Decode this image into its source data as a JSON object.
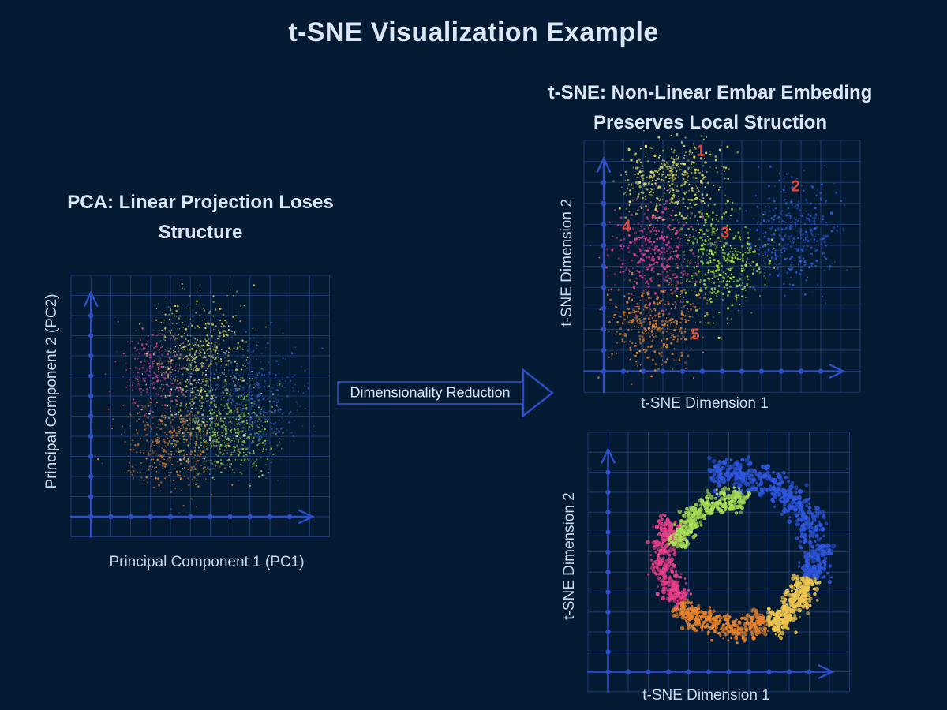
{
  "headings": {
    "main_title": "t-SNE Visualization Example",
    "pca_title_line1": "PCA: Linear Projection Loses",
    "pca_title_line2": "Structure",
    "tsne_title_line1": "t-SNE: Non-Linear Embar Embeding",
    "tsne_title_line2": "Preserves Local Struction"
  },
  "arrow": {
    "label": "Dimensionality Reduction"
  },
  "colors": {
    "background": "#041b33",
    "title_text": "#dce7f6",
    "axis_label_text": "#c9d7ea",
    "grid_line": "#1d3a74",
    "axis_line": "#2c4ec6",
    "cluster_number": "#e84338"
  },
  "chart_data": [
    {
      "id": "pca",
      "type": "scatter",
      "title": "PCA: Linear Projection Loses Structure",
      "xlabel": "Principal Component 1 (PC1)",
      "ylabel": "Principal Component 2 (PC2)",
      "grid": true,
      "tick_labels": "none",
      "description": "All classes projected into one overlapping mixed cloud",
      "groups": [
        {
          "name": "class-1-yellow",
          "color": "#ddd45c",
          "cx": 0.495,
          "cy": 0.319,
          "sx": 0.168,
          "sy": 0.187,
          "n": 600
        },
        {
          "name": "class-3-green",
          "color": "#9cd345",
          "cx": 0.596,
          "cy": 0.605,
          "sx": 0.168,
          "sy": 0.145,
          "n": 520
        },
        {
          "name": "class-5-orange",
          "color": "#dd7f32",
          "cx": 0.404,
          "cy": 0.651,
          "sx": 0.168,
          "sy": 0.151,
          "n": 480
        },
        {
          "name": "class-4-pink",
          "color": "#d84090",
          "cx": 0.324,
          "cy": 0.364,
          "sx": 0.116,
          "sy": 0.12,
          "n": 260
        },
        {
          "name": "class-2-blue",
          "color": "#2f57b8",
          "cx": 0.709,
          "cy": 0.47,
          "sx": 0.153,
          "sy": 0.187,
          "n": 420
        },
        {
          "name": "highlights-white",
          "color": "#dfe8f2",
          "cx": 0.52,
          "cy": 0.485,
          "sx": 0.22,
          "sy": 0.22,
          "n": 90
        }
      ]
    },
    {
      "id": "tsne-clusters",
      "type": "scatter",
      "title": "t-SNE: Non-Linear Embar Embeding Preserves Local Struction",
      "xlabel": "t-SNE Dimension 1",
      "ylabel": "t-SNE Dimension 2",
      "grid": true,
      "tick_labels": "none",
      "description": "Five well-separated clusters numbered 1-5",
      "clusters": [
        {
          "label": "1",
          "color": "#e5e163",
          "cx": 0.323,
          "cy": 0.154,
          "rx": 0.157,
          "ry": 0.141,
          "n": 420,
          "label_x": 0.423,
          "label_y": 0.044
        },
        {
          "label": "2",
          "color": "#2b5bd7",
          "cx": 0.763,
          "cy": 0.367,
          "rx": 0.129,
          "ry": 0.182,
          "n": 380,
          "label_x": 0.766,
          "label_y": 0.185
        },
        {
          "label": "3",
          "color": "#a8e23e",
          "cx": 0.494,
          "cy": 0.486,
          "rx": 0.134,
          "ry": 0.179,
          "n": 430,
          "label_x": 0.511,
          "label_y": 0.37
        },
        {
          "label": "4",
          "color": "#e03d92",
          "cx": 0.251,
          "cy": 0.445,
          "rx": 0.134,
          "ry": 0.163,
          "n": 430,
          "label_x": 0.154,
          "label_y": 0.345
        },
        {
          "label": "5",
          "color": "#e5832e",
          "cx": 0.266,
          "cy": 0.737,
          "rx": 0.143,
          "ry": 0.141,
          "n": 400,
          "label_x": 0.403,
          "label_y": 0.774
        }
      ]
    },
    {
      "id": "tsne-swirl",
      "type": "scatter",
      "title": "",
      "xlabel": "t-SNE Dimension 1",
      "ylabel": "t-SNE Dimension 2",
      "grid": true,
      "tick_labels": "none",
      "description": "Open ring / swirl manifold with color varying along the circumference",
      "center": {
        "x": 0.551,
        "y": 0.476
      },
      "segments": [
        {
          "name": "blue",
          "color": "#2d55de",
          "a0": -15,
          "a1": 105,
          "r": 0.32,
          "spread": 0.05,
          "n": 520,
          "size": [
            1.4,
            3.2
          ]
        },
        {
          "name": "yellow",
          "color": "#edc44e",
          "a0": -62,
          "a1": -15,
          "r": 0.3,
          "spread": 0.042,
          "n": 320,
          "size": [
            1.3,
            3.0
          ]
        },
        {
          "name": "orange",
          "color": "#e8832c",
          "a0": -138,
          "a1": -62,
          "r": 0.272,
          "spread": 0.042,
          "n": 380,
          "size": [
            1.2,
            2.8
          ]
        },
        {
          "name": "pink",
          "color": "#e63e88",
          "a0": -212,
          "a1": -138,
          "r": 0.262,
          "spread": 0.042,
          "n": 380,
          "size": [
            1.2,
            2.8
          ]
        },
        {
          "name": "green",
          "color": "#a8dd55",
          "a0": 75,
          "a1": 170,
          "r": 0.215,
          "spread": 0.038,
          "n": 330,
          "size": [
            1.3,
            3.0
          ]
        }
      ]
    }
  ]
}
